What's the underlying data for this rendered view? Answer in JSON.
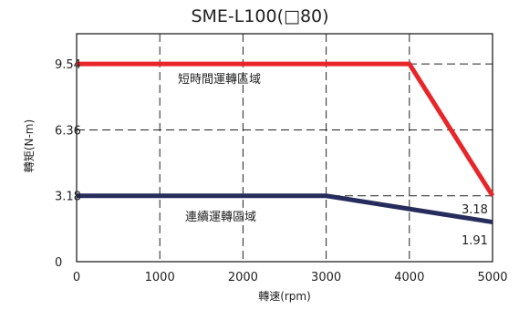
{
  "chart_data": {
    "type": "line",
    "title": "SME-L100(□80)",
    "xlabel": "轉速(rpm)",
    "ylabel": "轉矩(N-m)",
    "xlim": [
      0,
      5000
    ],
    "ylim": [
      0,
      11
    ],
    "x_ticks": [
      "0",
      "1000",
      "2000",
      "3000",
      "4000",
      "5000"
    ],
    "y_ticks": [
      "0",
      "3.18",
      "6.36",
      "9.54"
    ],
    "grid": true,
    "colors": {
      "short_time": "#e8262a",
      "continuous": "#262c5c",
      "grid": "#222222"
    },
    "series": [
      {
        "name": "短時間運轉區域",
        "x": [
          0,
          4000,
          5000
        ],
        "y": [
          9.54,
          9.54,
          3.18
        ]
      },
      {
        "name": "連續運轉區域",
        "x": [
          0,
          3000,
          5000
        ],
        "y": [
          3.18,
          3.18,
          1.91
        ]
      }
    ],
    "annotations": [
      "3.18",
      "1.91"
    ]
  }
}
